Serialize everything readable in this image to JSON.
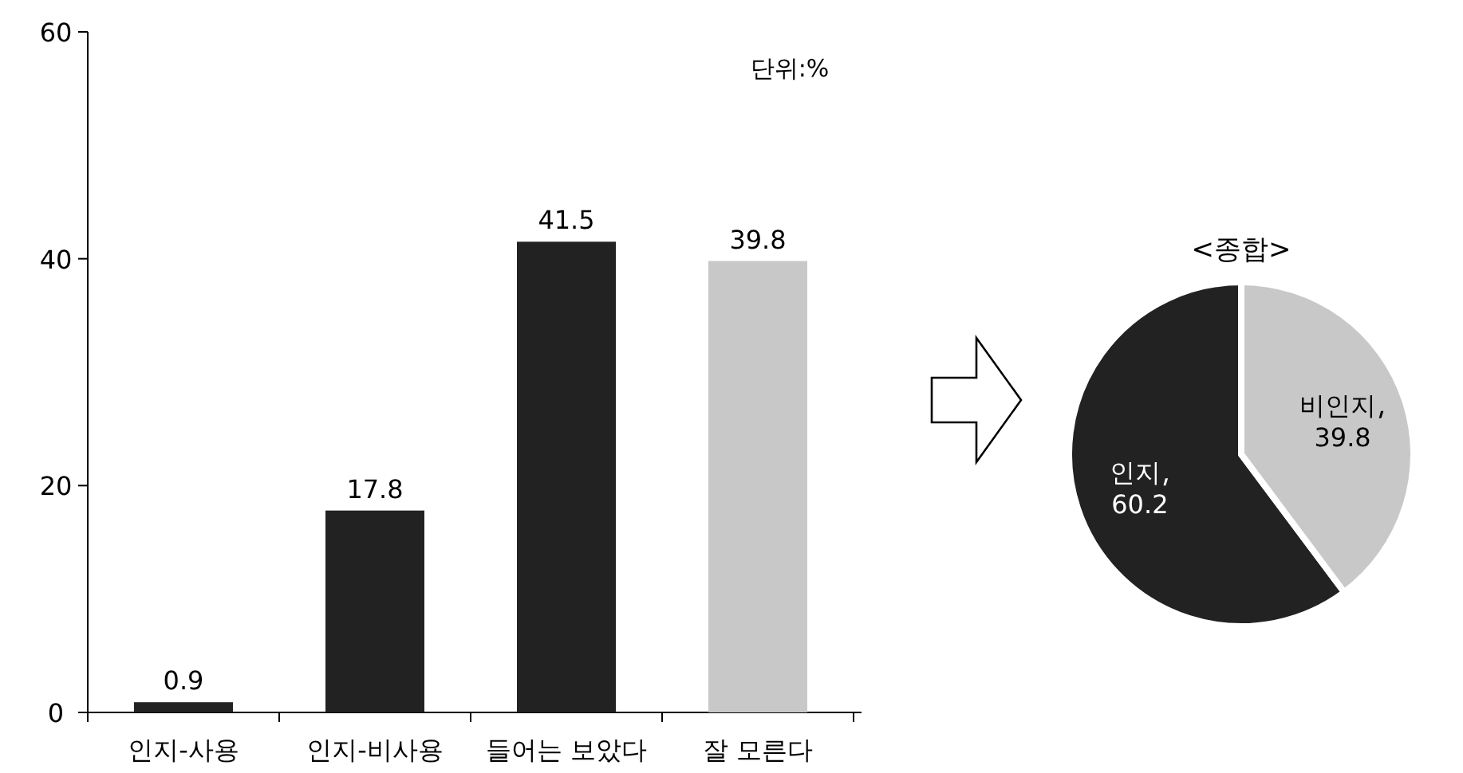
{
  "chart_data": [
    {
      "type": "bar",
      "categories": [
        "인지-사용",
        "인지-비사용",
        "들어는 보았다",
        "잘 모른다"
      ],
      "values": [
        0.9,
        17.8,
        41.5,
        39.8
      ],
      "colors": [
        "#222222",
        "#222222",
        "#222222",
        "#c8c8c8"
      ],
      "ylim": [
        0,
        60
      ],
      "yticks": [
        0,
        20,
        40,
        60
      ],
      "data_labels": true,
      "grid": false,
      "annotations": [
        "단위:%"
      ]
    },
    {
      "type": "pie",
      "title": "<종합>",
      "categories": [
        "인지",
        "비인지"
      ],
      "values": [
        60.2,
        39.8
      ],
      "colors": [
        "#222222",
        "#c8c8c8"
      ],
      "data_labels": true
    }
  ]
}
